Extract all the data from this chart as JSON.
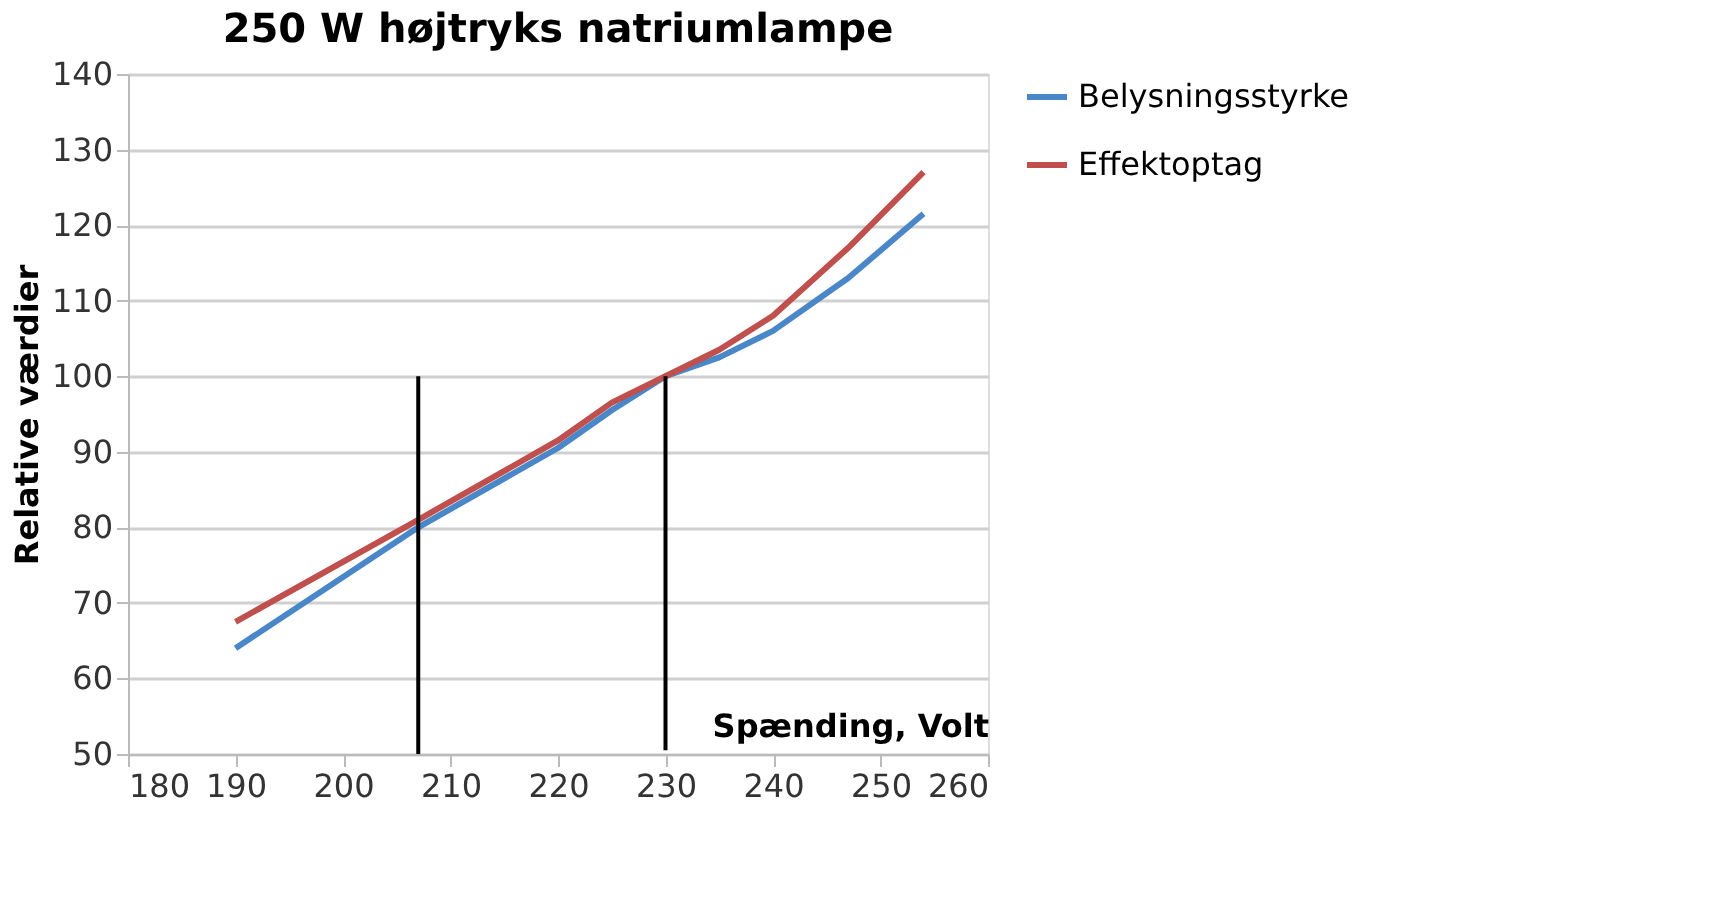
{
  "chart_data": {
    "type": "line",
    "title": "250 W højtryks natriumlampe",
    "xlabel": "Spænding, Volt",
    "ylabel": "Relative værdier",
    "xlim": [
      180,
      260
    ],
    "xticks": [
      180,
      190,
      200,
      210,
      220,
      230,
      240,
      250,
      260
    ],
    "ylim": [
      50,
      140
    ],
    "yticks": [
      50,
      60,
      70,
      80,
      90,
      100,
      110,
      120,
      130,
      140
    ],
    "grid": "y",
    "legend": "right",
    "marker": "none",
    "line_style": "solid",
    "series": [
      {
        "name": "Belysningsstyrke",
        "color": "#4a87c8",
        "x": [
          190,
          207,
          220,
          225,
          230,
          235,
          240,
          247,
          254
        ],
        "values": [
          64,
          80,
          90.5,
          95.5,
          100,
          102.5,
          106,
          113,
          121.5
        ]
      },
      {
        "name": "Effektoptag",
        "color": "#c0504d",
        "x": [
          190,
          207,
          220,
          225,
          230,
          235,
          240,
          247,
          254
        ],
        "values": [
          67.5,
          81,
          91.5,
          96.5,
          100,
          103.5,
          108,
          117,
          127
        ]
      },
      {
        "color": "#000000",
        "x": [
          207,
          207
        ],
        "values": [
          50,
          100
        ]
      },
      {
        "color": "#000000",
        "x": [
          230,
          230
        ],
        "values": [
          50.5,
          100
        ]
      }
    ]
  }
}
